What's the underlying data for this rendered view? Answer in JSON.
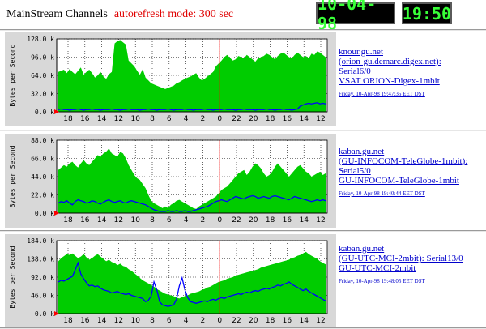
{
  "page": {
    "title": "MainStream Channels",
    "subtitle": "autorefresh mode: 300 sec"
  },
  "clock": {
    "date": "10-04-98",
    "time": "19:50"
  },
  "channels": [
    {
      "host": "knour.gu.net",
      "line2": "(orion-gu.demarc.digex.net):",
      "line3": "Serial6/0",
      "line4": "VSAT ORION-Digex-1mbit",
      "timestamp": "Friday, 10-Apr-98 19:47:35 EET DST"
    },
    {
      "host": "kaban.gu.net",
      "line2": "(GU-INFOCOM-TeleGlobe-1mbit):",
      "line3": "Serial5/0",
      "line4": "GU-INFOCOM-TeleGlobe-1mbit",
      "timestamp": "Friday, 10-Apr-98 19:40:44 EET DST"
    },
    {
      "host": "kaban.gu.net",
      "line2": "(GU-UTC-MCI-2mbit): Serial13/0",
      "line3": "GU-UTC-MCI-2mbit",
      "line4": "",
      "timestamp": "Friday, 10-Apr-98 19:48:05 EET DST"
    }
  ],
  "chart_data": [
    {
      "type": "area",
      "ylabel": "Bytes per Second",
      "yticks": [
        "0.0 k",
        "32.0 k",
        "64.0 k",
        "96.0 k",
        "128.0 k"
      ],
      "ylim": [
        0,
        128
      ],
      "xticks": [
        "18",
        "16",
        "14",
        "12",
        "10",
        "8",
        "6",
        "4",
        "2",
        "0",
        "22",
        "20",
        "18",
        "16",
        "14",
        "12"
      ],
      "series": [
        {
          "style": "area",
          "color": "#00cc00",
          "values": [
            70,
            72,
            74,
            68,
            75,
            70,
            66,
            72,
            78,
            65,
            70,
            74,
            68,
            60,
            64,
            70,
            62,
            58,
            66,
            70,
            120,
            124,
            126,
            122,
            118,
            90,
            85,
            80,
            72,
            65,
            75,
            60,
            55,
            50,
            48,
            46,
            44,
            42,
            40,
            42,
            44,
            46,
            50,
            52,
            55,
            58,
            60,
            62,
            65,
            68,
            60,
            55,
            58,
            62,
            66,
            70,
            80,
            85,
            90,
            96,
            100,
            95,
            90,
            92,
            98,
            96,
            94,
            100,
            96,
            92,
            88,
            94,
            96,
            98,
            102,
            100,
            96,
            92,
            98,
            102,
            104,
            100,
            96,
            94,
            100,
            104,
            100,
            96,
            98,
            94,
            102,
            100,
            106,
            104,
            100,
            96
          ]
        },
        {
          "style": "line",
          "color": "#0000ff",
          "values": [
            4,
            5,
            4,
            4,
            3,
            4,
            4,
            5,
            4,
            3,
            4,
            4,
            5,
            4,
            4,
            3,
            4,
            4,
            4,
            5,
            4,
            4,
            3,
            4,
            4,
            5,
            4,
            4,
            4,
            3,
            4,
            4,
            5,
            4,
            4,
            3,
            4,
            4,
            4,
            5,
            4,
            3,
            4,
            4,
            4,
            5,
            4,
            4,
            3,
            4,
            4,
            4,
            5,
            4,
            4,
            3,
            4,
            4,
            4,
            5,
            4,
            4,
            4,
            3,
            4,
            4,
            5,
            4,
            4,
            4,
            3,
            4,
            4,
            4,
            5,
            4,
            4,
            3,
            4,
            4,
            5,
            4,
            4,
            3,
            4,
            5,
            10,
            12,
            14,
            15,
            14,
            15,
            16,
            14,
            15,
            14
          ]
        }
      ]
    },
    {
      "type": "area",
      "ylabel": "Bytes per Second",
      "yticks": [
        "0.0 k",
        "22.0 k",
        "44.0 k",
        "66.0 k",
        "88.0 k"
      ],
      "ylim": [
        0,
        88
      ],
      "xticks": [
        "18",
        "16",
        "14",
        "12",
        "10",
        "8",
        "6",
        "4",
        "2",
        "0",
        "22",
        "20",
        "18",
        "16",
        "14",
        "12"
      ],
      "series": [
        {
          "style": "area",
          "color": "#00cc00",
          "values": [
            52,
            55,
            58,
            56,
            60,
            62,
            58,
            55,
            60,
            64,
            60,
            58,
            62,
            66,
            70,
            68,
            72,
            74,
            78,
            72,
            70,
            68,
            74,
            72,
            66,
            58,
            52,
            46,
            42,
            40,
            35,
            30,
            22,
            15,
            12,
            10,
            8,
            6,
            8,
            6,
            10,
            12,
            15,
            16,
            14,
            12,
            10,
            8,
            6,
            5,
            8,
            10,
            12,
            14,
            16,
            18,
            20,
            24,
            28,
            30,
            32,
            36,
            40,
            44,
            48,
            50,
            52,
            46,
            50,
            56,
            60,
            58,
            54,
            48,
            44,
            46,
            50,
            56,
            60,
            56,
            52,
            48,
            44,
            48,
            52,
            56,
            58,
            54,
            50,
            48,
            44,
            46,
            48,
            50,
            46,
            48
          ]
        },
        {
          "style": "line",
          "color": "#0000ff",
          "values": [
            12,
            14,
            13,
            15,
            12,
            10,
            14,
            16,
            15,
            14,
            12,
            13,
            15,
            14,
            12,
            11,
            13,
            15,
            16,
            14,
            13,
            14,
            15,
            13,
            12,
            14,
            15,
            14,
            13,
            12,
            11,
            10,
            8,
            6,
            4,
            3,
            2,
            2,
            2,
            3,
            2,
            2,
            3,
            2,
            2,
            3,
            2,
            2,
            3,
            4,
            5,
            6,
            7,
            8,
            10,
            12,
            14,
            15,
            16,
            15,
            14,
            16,
            18,
            20,
            19,
            18,
            17,
            19,
            20,
            21,
            20,
            18,
            19,
            20,
            19,
            18,
            20,
            21,
            20,
            19,
            18,
            17,
            16,
            18,
            20,
            19,
            18,
            17,
            16,
            15,
            14,
            15,
            16,
            15,
            16,
            15
          ]
        }
      ]
    },
    {
      "type": "area",
      "ylabel": "Bytes per Second",
      "yticks": [
        "0.0 k",
        "46.0 k",
        "92.0 k",
        "138.0 k",
        "184.0 k"
      ],
      "ylim": [
        0,
        184
      ],
      "xticks": [
        "18",
        "16",
        "14",
        "12",
        "10",
        "8",
        "6",
        "4",
        "2",
        "0",
        "22",
        "20",
        "18",
        "16",
        "14",
        "12"
      ],
      "series": [
        {
          "style": "area",
          "color": "#00cc00",
          "values": [
            132,
            140,
            145,
            150,
            148,
            152,
            146,
            140,
            144,
            150,
            142,
            136,
            140,
            146,
            150,
            144,
            138,
            132,
            136,
            130,
            128,
            122,
            126,
            120,
            118,
            112,
            108,
            102,
            96,
            90,
            84,
            80,
            76,
            72,
            68,
            62,
            58,
            54,
            50,
            48,
            46,
            44,
            40,
            38,
            42,
            44,
            46,
            50,
            52,
            54,
            56,
            60,
            62,
            66,
            68,
            72,
            76,
            80,
            82,
            84,
            88,
            90,
            92,
            96,
            98,
            100,
            102,
            104,
            106,
            108,
            110,
            112,
            116,
            118,
            120,
            122,
            124,
            126,
            128,
            130,
            132,
            134,
            136,
            140,
            142,
            146,
            148,
            152,
            156,
            150,
            146,
            142,
            138,
            132,
            128,
            124
          ]
        },
        {
          "style": "line",
          "color": "#0000ff",
          "values": [
            80,
            84,
            82,
            86,
            90,
            94,
            110,
            128,
            100,
            88,
            78,
            70,
            72,
            68,
            70,
            64,
            60,
            58,
            56,
            52,
            54,
            56,
            52,
            50,
            48,
            50,
            46,
            44,
            42,
            40,
            38,
            30,
            34,
            44,
            80,
            60,
            30,
            22,
            20,
            18,
            20,
            22,
            36,
            70,
            90,
            60,
            40,
            30,
            28,
            26,
            28,
            30,
            32,
            30,
            34,
            36,
            34,
            38,
            40,
            38,
            42,
            44,
            46,
            48,
            50,
            48,
            52,
            54,
            52,
            56,
            58,
            56,
            60,
            62,
            64,
            62,
            66,
            68,
            72,
            70,
            74,
            76,
            80,
            74,
            70,
            66,
            62,
            58,
            62,
            56,
            52,
            48,
            44,
            40,
            36,
            32
          ]
        }
      ]
    }
  ]
}
